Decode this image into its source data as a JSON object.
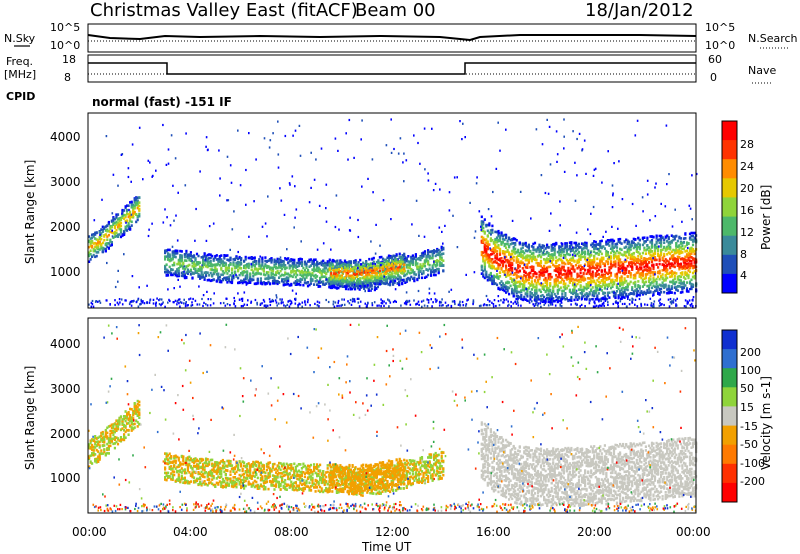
{
  "header": {
    "title": "Christmas Valley East (fitACF)",
    "beam": "Beam 00",
    "date": "18/Jan/2012"
  },
  "noise_panel": {
    "left_label": "N.Sky",
    "right_label": "N.Search",
    "left_ticks": [
      "10^5",
      "10^0"
    ],
    "right_ticks": [
      "10^5",
      "10^0"
    ]
  },
  "freq_panel": {
    "left_label_line1": "Freq.",
    "left_label_line2": "[MHz]",
    "right_label": "Nave",
    "left_ticks": [
      "18",
      "8"
    ],
    "right_ticks": [
      "60",
      "0"
    ]
  },
  "cpid": {
    "label": "CPID",
    "text": "normal (fast) -151 IF"
  },
  "x_axis": {
    "label": "Time UT",
    "ticks": [
      "00:00",
      "04:00",
      "08:00",
      "12:00",
      "16:00",
      "20:00",
      "00:00"
    ]
  },
  "power_panel": {
    "ylabel": "Slant Range [km]",
    "yticks": [
      "1000",
      "2000",
      "3000",
      "4000"
    ],
    "colorbar_label": "Power [dB]",
    "colorbar_ticks": [
      "4",
      "8",
      "12",
      "16",
      "20",
      "24",
      "28"
    ],
    "colors": [
      "#0000ff",
      "#1f4fb8",
      "#3a8a9a",
      "#4db86a",
      "#8fd43a",
      "#e6c800",
      "#ff8c00",
      "#ff3300",
      "#ff0000"
    ]
  },
  "velocity_panel": {
    "ylabel": "Slant Range [km]",
    "yticks": [
      "1000",
      "2000",
      "3000",
      "4000"
    ],
    "colorbar_label": "Velocity [m s-1]",
    "colorbar_ticks": [
      "200",
      "100",
      "50",
      "15",
      "-15",
      "-50",
      "-100",
      "-200"
    ],
    "colors": [
      "#1030d0",
      "#2f6fd0",
      "#2fa84a",
      "#8fd43a",
      "#c8c8c0",
      "#f2a000",
      "#ff7a00",
      "#ff3000",
      "#ff0000"
    ]
  },
  "chart_data": {
    "type": "heatmap",
    "x_range_hours": [
      0,
      24
    ],
    "y_range_km": [
      200,
      4500
    ],
    "power_bands": [
      {
        "name": "morning_arc",
        "t": [
          0,
          0.5,
          1.0,
          1.5,
          2.0
        ],
        "r": [
          1550,
          1700,
          1950,
          2200,
          2450
        ],
        "level": 6
      },
      {
        "name": "night_band",
        "t": [
          3,
          5,
          7,
          9,
          10,
          11,
          12,
          13,
          14
        ],
        "r": [
          1250,
          1100,
          1050,
          1000,
          950,
          900,
          1000,
          1150,
          1300
        ],
        "level": 4
      },
      {
        "name": "afternoon_core",
        "t": [
          9.5,
          10.5,
          11.5,
          12.5
        ],
        "r": [
          1000,
          980,
          1050,
          1150
        ],
        "level": 7
      },
      {
        "name": "evening_band",
        "t": [
          15.5,
          16,
          17,
          18,
          20,
          22,
          24
        ],
        "r": [
          1600,
          1350,
          1050,
          1000,
          1050,
          1150,
          1250
        ],
        "level": 8
      }
    ]
  }
}
